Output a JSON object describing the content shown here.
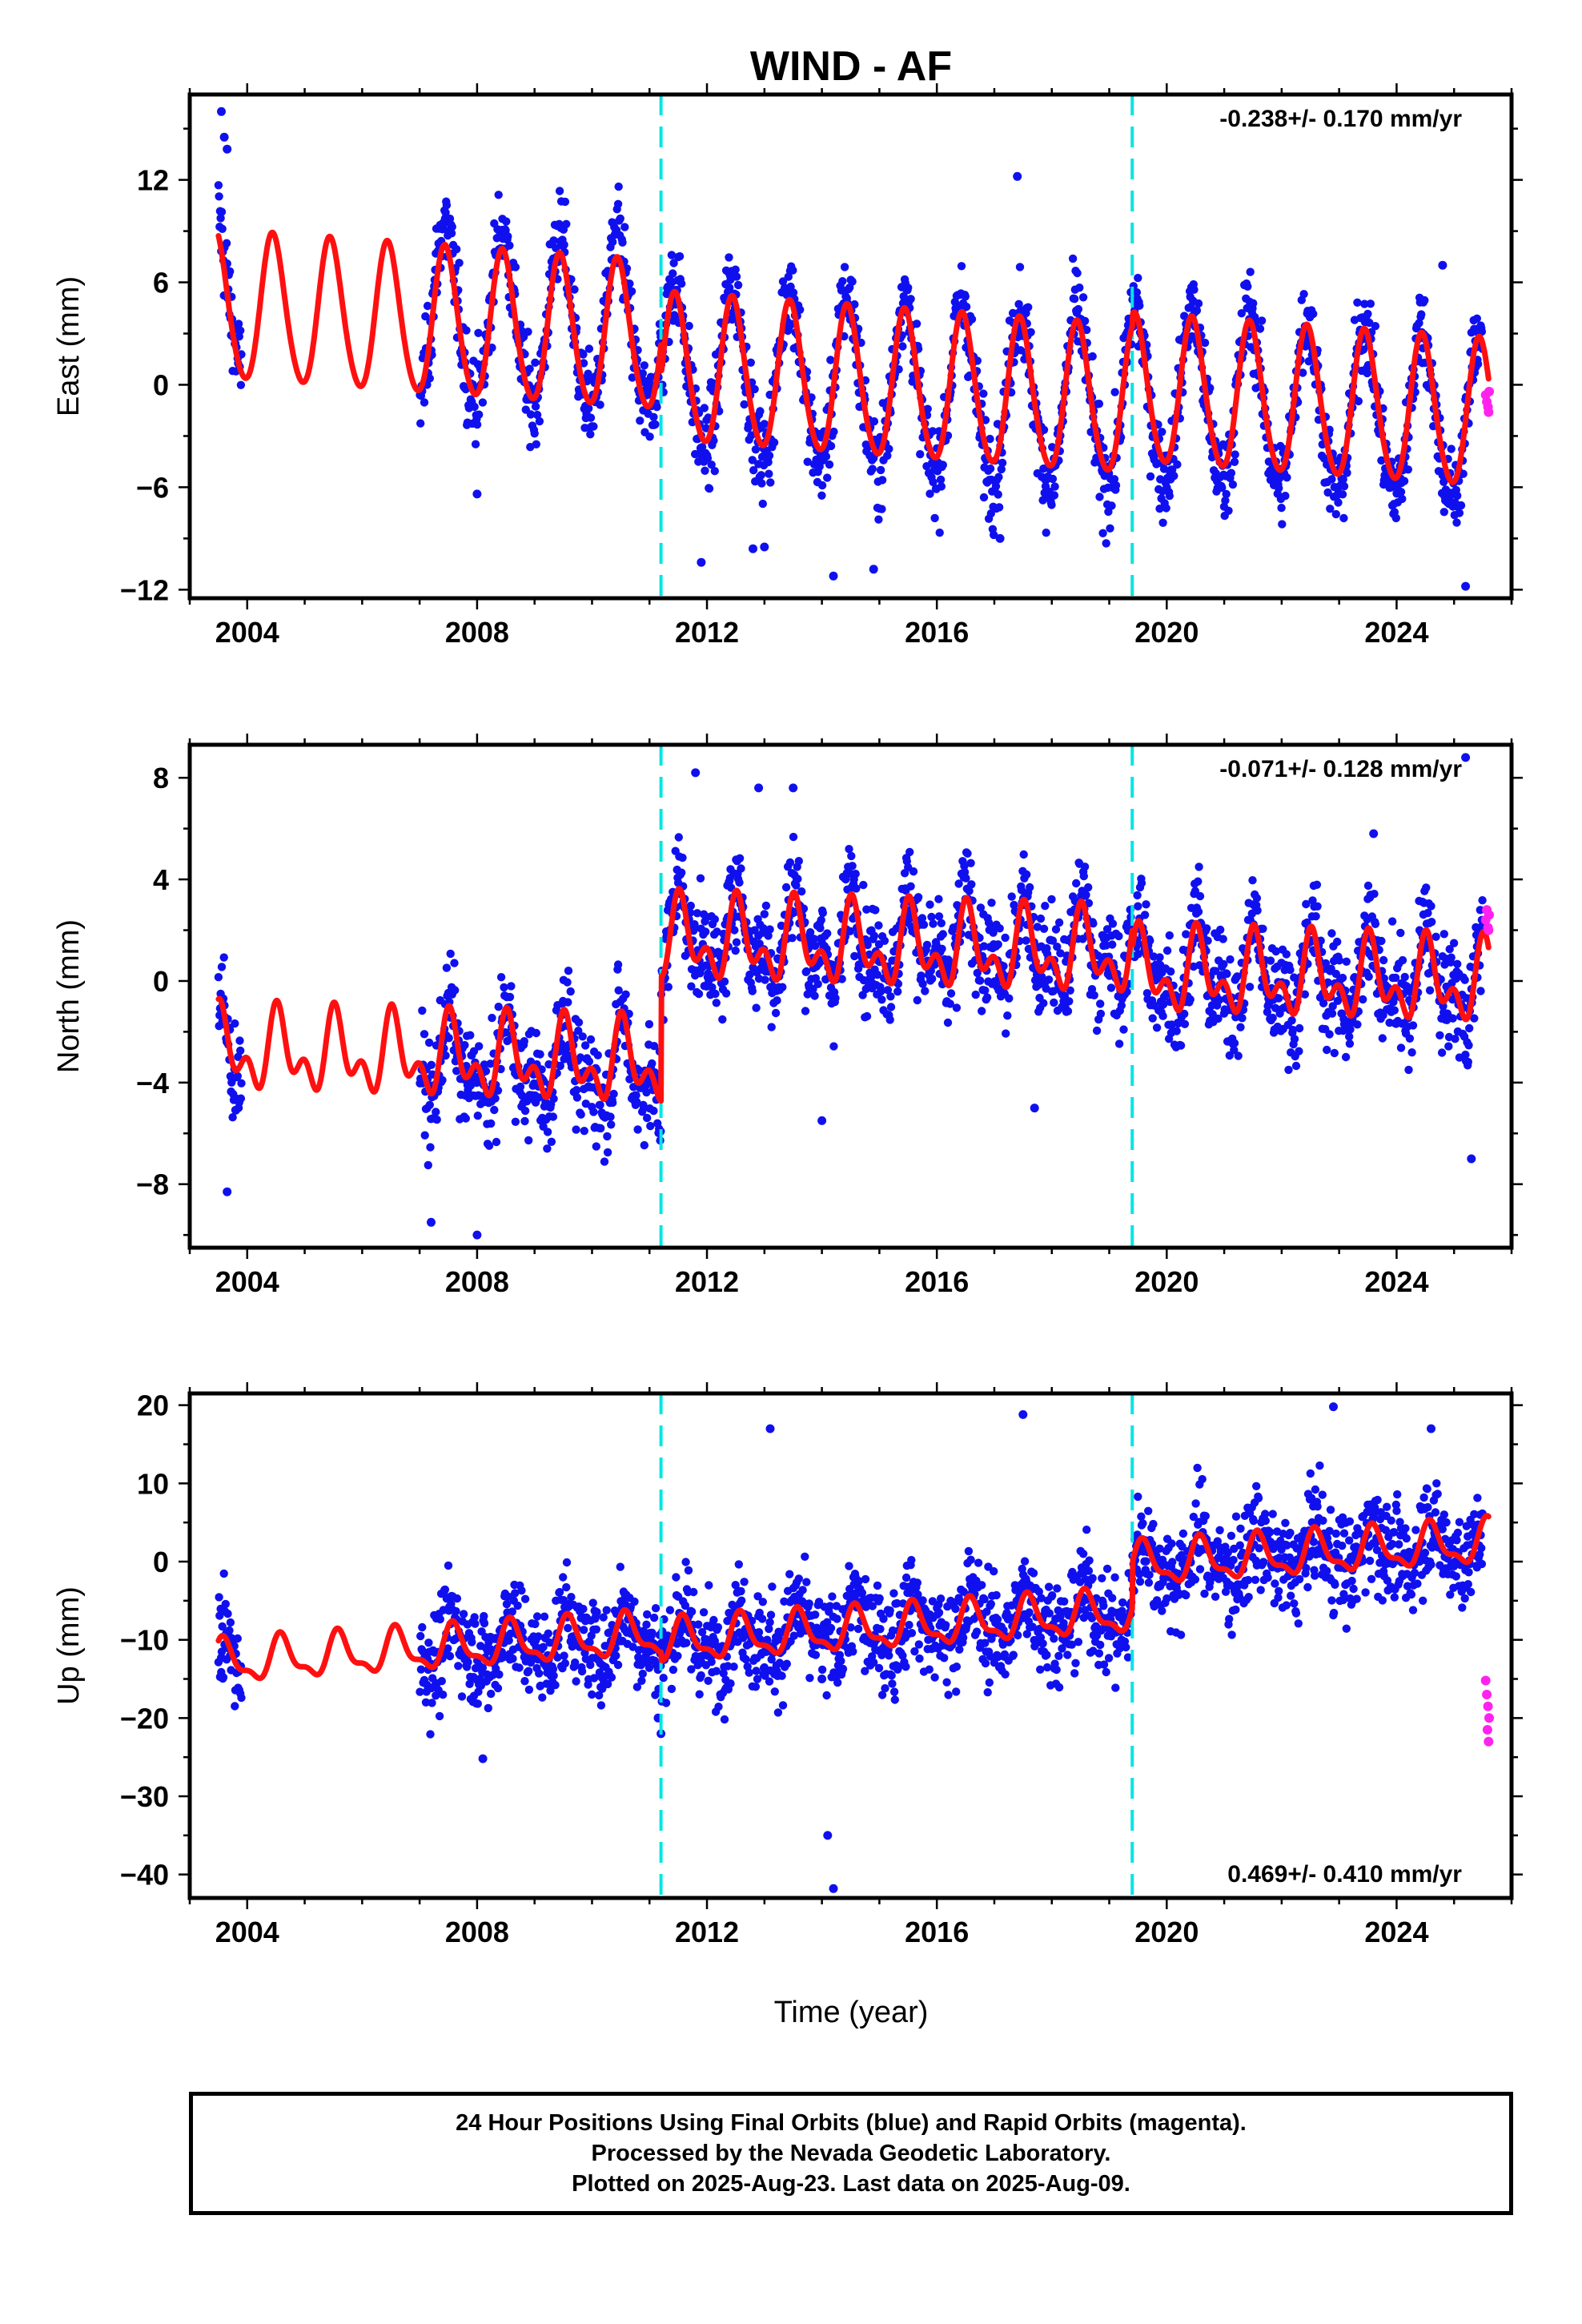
{
  "chart_data": {
    "type": "scatter",
    "title": "WIND - AF",
    "xlabel": "Time (year)",
    "xlim": [
      2003.0,
      2026.0
    ],
    "x_ticks": [
      "2004",
      "2008",
      "2012",
      "2016",
      "2020",
      "2024"
    ],
    "x_tick_values": [
      2004,
      2008,
      2012,
      2016,
      2020,
      2024
    ],
    "break_years": [
      2011.2,
      2019.4
    ],
    "colors": {
      "final_orbits": "#1010ee",
      "rapid_orbits": "#ff22ee",
      "model": "#ff1010",
      "breaks": "#00e5e5"
    },
    "panels": [
      {
        "name": "east",
        "ylabel": "East (mm)",
        "ylim": [
          -12.5,
          17.0
        ],
        "y_ticks": [
          "12",
          "6",
          "0",
          "-6",
          "-12"
        ],
        "y_tick_values": [
          12,
          6,
          0,
          -6,
          -12
        ],
        "rate_text": "-0.238+/- 0.170 mm/yr",
        "rate_position": "top-right",
        "model": {
          "offset": 0.5,
          "trend": -0.238,
          "annual_amp": 4.3,
          "semiannual_amp": 0.4,
          "phase_year": 0.45,
          "segment_offsets": [
            1.5,
            -0.3,
            0.4
          ]
        },
        "scatter": {
          "noise": 1.3,
          "annual_scale": 1.15,
          "data_start": 2003.5,
          "gap": [
            2003.9,
            2007.0
          ],
          "end": 2025.5
        },
        "outliers": [
          [
            2003.55,
            16.0
          ],
          [
            2003.6,
            14.5
          ],
          [
            2003.65,
            13.8
          ],
          [
            2008.0,
            -6.4
          ],
          [
            2011.9,
            -10.4
          ],
          [
            2013.0,
            -9.5
          ],
          [
            2014.2,
            -11.2
          ],
          [
            2014.9,
            -10.8
          ],
          [
            2017.4,
            12.2
          ],
          [
            2017.1,
            -9.0
          ],
          [
            2025.2,
            -11.8
          ],
          [
            2024.8,
            7.0
          ],
          [
            2012.8,
            -9.6
          ]
        ],
        "rapid_points": [
          [
            2025.55,
            -0.6
          ],
          [
            2025.57,
            -1.0
          ],
          [
            2025.59,
            -1.3
          ],
          [
            2025.61,
            -0.4
          ],
          [
            2025.6,
            -1.6
          ]
        ]
      },
      {
        "name": "north",
        "ylabel": "North (mm)",
        "ylim": [
          -10.5,
          9.3
        ],
        "y_ticks": [
          "8",
          "4",
          "0",
          "-4",
          "-8"
        ],
        "y_tick_values": [
          8,
          4,
          0,
          -4,
          -8
        ],
        "rate_text": "-0.071+/- 0.128 mm/yr",
        "rate_position": "top-right",
        "model": {
          "offset": -0.5,
          "trend": -0.071,
          "annual_amp": 1.2,
          "semiannual_amp": 0.9,
          "phase_year": 0.55,
          "segment_offsets": [
            -3.0,
            1.9,
            1.2
          ]
        },
        "scatter": {
          "noise": 1.0,
          "annual_scale": 1.1,
          "data_start": 2003.5,
          "gap": [
            2003.9,
            2007.0
          ],
          "end": 2025.5
        },
        "outliers": [
          [
            2003.65,
            -8.3
          ],
          [
            2007.2,
            -9.5
          ],
          [
            2008.0,
            -10.0
          ],
          [
            2011.8,
            8.2
          ],
          [
            2012.9,
            7.6
          ],
          [
            2013.5,
            7.6
          ],
          [
            2014.0,
            -5.5
          ],
          [
            2017.7,
            -5.0
          ],
          [
            2025.2,
            8.8
          ],
          [
            2025.3,
            -7.0
          ],
          [
            2023.6,
            5.8
          ]
        ],
        "rapid_points": [
          [
            2025.55,
            2.4
          ],
          [
            2025.57,
            2.8
          ],
          [
            2025.59,
            2.1
          ],
          [
            2025.61,
            2.6
          ],
          [
            2025.6,
            2.0
          ]
        ]
      },
      {
        "name": "up",
        "ylabel": "Up (mm)",
        "ylim": [
          -43.0,
          21.5
        ],
        "y_ticks": [
          "20",
          "10",
          "0",
          "-10",
          "-20",
          "-30",
          "-40"
        ],
        "y_tick_values": [
          20,
          10,
          0,
          -10,
          -20,
          -30,
          -40
        ],
        "rate_text": "0.469+/- 0.410 mm/yr",
        "rate_position": "bottom-right",
        "model": {
          "offset": -5.0,
          "trend": 0.469,
          "annual_amp": 2.5,
          "semiannual_amp": 1.0,
          "phase_year": 0.6,
          "segment_offsets": [
            -3.0,
            -4.0,
            2.0
          ]
        },
        "scatter": {
          "noise": 3.2,
          "annual_scale": 1.0,
          "data_start": 2003.5,
          "gap": [
            2003.9,
            2007.0
          ],
          "end": 2025.5
        },
        "outliers": [
          [
            2008.1,
            -25.2
          ],
          [
            2014.1,
            -35.0
          ],
          [
            2014.2,
            -41.8
          ],
          [
            2011.2,
            -22.0
          ],
          [
            2011.15,
            -20.0
          ],
          [
            2017.5,
            18.8
          ],
          [
            2022.9,
            19.8
          ],
          [
            2024.6,
            17.0
          ],
          [
            2013.1,
            17.0
          ],
          [
            2014.0,
            -15.0
          ],
          [
            2003.55,
            -12.3
          ]
        ],
        "rapid_points": [
          [
            2025.55,
            -15.2
          ],
          [
            2025.57,
            -17.0
          ],
          [
            2025.59,
            -18.5
          ],
          [
            2025.61,
            -20.0
          ],
          [
            2025.58,
            -21.5
          ],
          [
            2025.6,
            -23.0
          ]
        ]
      }
    ]
  },
  "footer": {
    "line1": "24 Hour Positions Using Final Orbits (blue) and Rapid Orbits (magenta).",
    "line2": "Processed by the Nevada Geodetic Laboratory.",
    "line3": "Plotted on 2025-Aug-23. Last data on 2025-Aug-09."
  }
}
